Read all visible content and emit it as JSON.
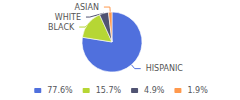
{
  "chart_data": {
    "type": "pie",
    "categories": [
      "HISPANIC",
      "BLACK",
      "WHITE",
      "ASIAN"
    ],
    "values": [
      77.6,
      15.7,
      4.9,
      1.9
    ],
    "value_labels": [
      "77.6%",
      "15.7%",
      "4.9%",
      "1.9%"
    ],
    "legend": "bottom"
  }
}
